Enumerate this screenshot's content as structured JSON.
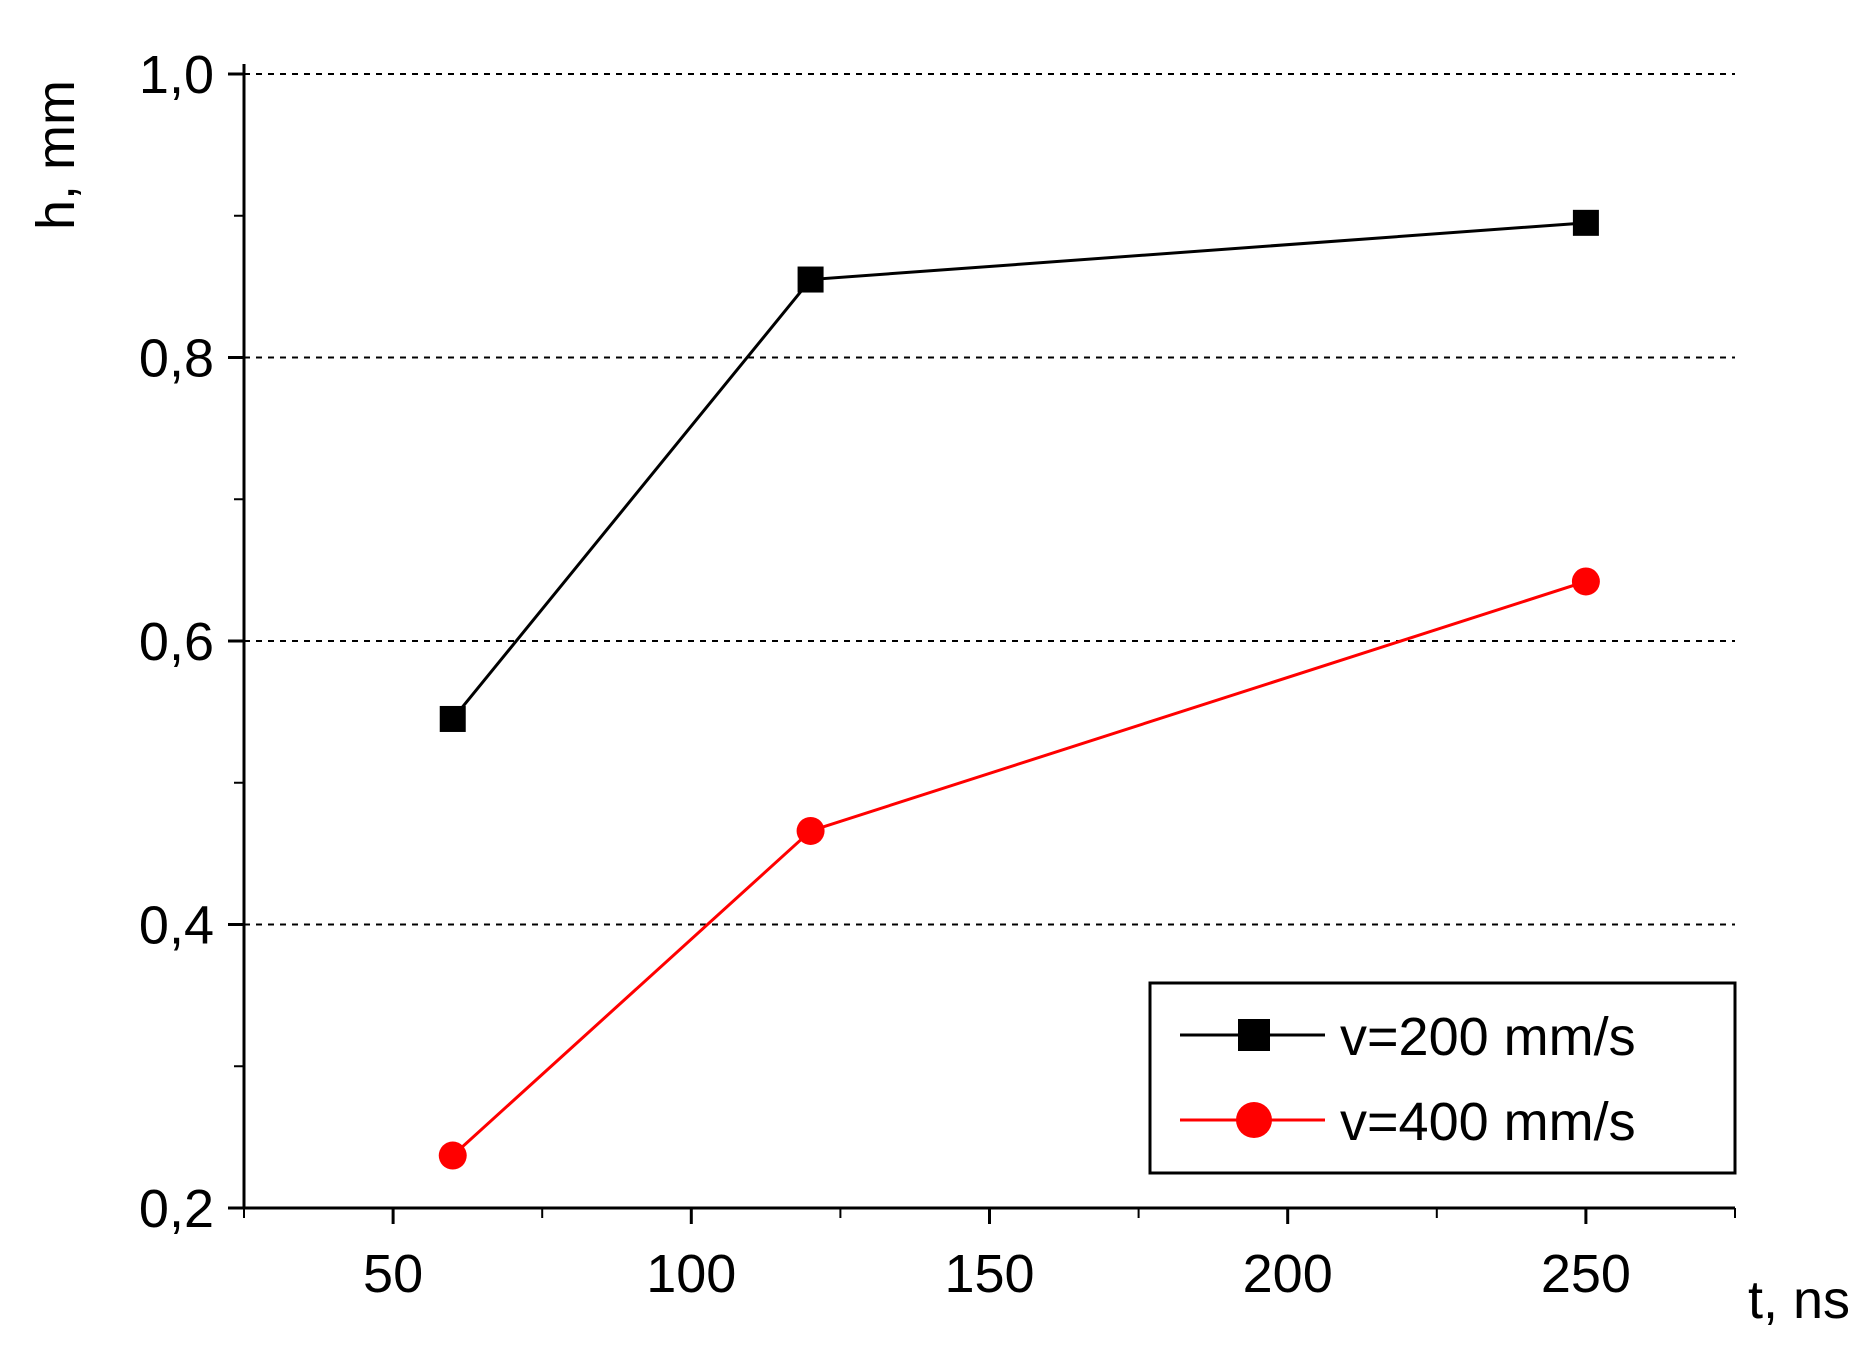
{
  "chart_data": {
    "type": "line",
    "xlabel": "t, ns",
    "ylabel": "h, mm",
    "xlim": [
      25,
      275
    ],
    "ylim": [
      0.2,
      1.0
    ],
    "xticks": [
      50,
      100,
      150,
      200,
      250
    ],
    "xtick_labels": [
      "50",
      "100",
      "150",
      "200",
      "250"
    ],
    "yticks": [
      0.2,
      0.4,
      0.6,
      0.8,
      1.0
    ],
    "ytick_labels": [
      "0,2",
      "0,4",
      "0,6",
      "0,8",
      "1,0"
    ],
    "grid": "horizontal dashed at 0,4 0,6 0,8 1,0",
    "legend_position": "bottom-right",
    "series": [
      {
        "name": "v=200 mm/s",
        "marker": "square",
        "color": "#000000",
        "x": [
          60,
          120,
          250
        ],
        "y": [
          0.545,
          0.855,
          0.895
        ]
      },
      {
        "name": "v=400 mm/s",
        "marker": "circle",
        "color": "#ff0000",
        "x": [
          60,
          120,
          250
        ],
        "y": [
          0.237,
          0.466,
          0.642
        ]
      }
    ]
  }
}
